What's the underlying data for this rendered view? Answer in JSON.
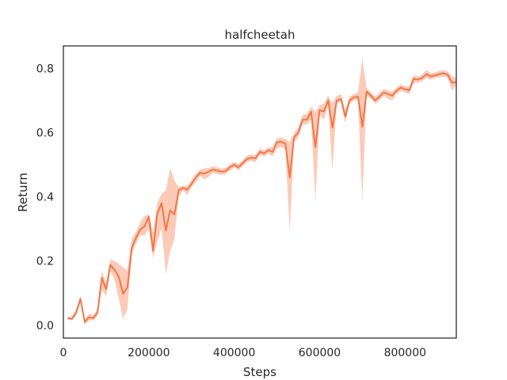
{
  "chart_data": {
    "type": "line",
    "title": "halfcheetah",
    "xlabel": "Steps",
    "ylabel": "Return",
    "xlim": [
      0,
      920000
    ],
    "ylim": [
      -0.04,
      0.87
    ],
    "xticks": [
      0,
      200000,
      400000,
      600000,
      800000
    ],
    "xtick_labels": [
      "0",
      "200000",
      "400000",
      "600000",
      "800000"
    ],
    "yticks": [
      0.0,
      0.2,
      0.4,
      0.6,
      0.8
    ],
    "ytick_labels": [
      "0.0",
      "0.2",
      "0.4",
      "0.6",
      "0.8"
    ],
    "grid": false,
    "colors": {
      "line": "#f07748",
      "band": "#f9b9a0"
    },
    "series": [
      {
        "x": [
          10000,
          20000,
          30000,
          40000,
          50000,
          60000,
          70000,
          80000,
          90000,
          100000,
          110000,
          120000,
          130000,
          140000,
          150000,
          160000,
          170000,
          180000,
          190000,
          200000,
          210000,
          220000,
          230000,
          240000,
          250000,
          260000,
          270000,
          280000,
          290000,
          300000,
          310000,
          320000,
          330000,
          340000,
          350000,
          360000,
          370000,
          380000,
          390000,
          400000,
          410000,
          420000,
          430000,
          440000,
          450000,
          460000,
          470000,
          480000,
          490000,
          500000,
          510000,
          520000,
          530000,
          540000,
          550000,
          560000,
          570000,
          580000,
          590000,
          600000,
          610000,
          620000,
          630000,
          640000,
          650000,
          660000,
          670000,
          680000,
          690000,
          700000,
          710000,
          720000,
          730000,
          740000,
          750000,
          760000,
          770000,
          780000,
          790000,
          800000,
          810000,
          820000,
          830000,
          840000,
          850000,
          860000,
          870000,
          880000,
          890000,
          900000,
          910000,
          920000
        ],
        "values": [
          0.022,
          0.02,
          0.04,
          0.082,
          0.01,
          0.025,
          0.022,
          0.04,
          0.148,
          0.112,
          0.188,
          0.172,
          0.15,
          0.098,
          0.118,
          0.24,
          0.272,
          0.298,
          0.308,
          0.338,
          0.232,
          0.348,
          0.38,
          0.295,
          0.358,
          0.345,
          0.42,
          0.428,
          0.422,
          0.44,
          0.46,
          0.475,
          0.472,
          0.478,
          0.485,
          0.482,
          0.478,
          0.48,
          0.492,
          0.5,
          0.492,
          0.505,
          0.518,
          0.522,
          0.52,
          0.54,
          0.535,
          0.545,
          0.54,
          0.57,
          0.572,
          0.565,
          0.46,
          0.585,
          0.6,
          0.64,
          0.64,
          0.665,
          0.555,
          0.67,
          0.665,
          0.7,
          0.615,
          0.7,
          0.705,
          0.65,
          0.7,
          0.71,
          0.712,
          0.618,
          0.728,
          0.715,
          0.7,
          0.712,
          0.725,
          0.72,
          0.715,
          0.73,
          0.74,
          0.735,
          0.732,
          0.768,
          0.765,
          0.77,
          0.782,
          0.775,
          0.778,
          0.782,
          0.785,
          0.78,
          0.755,
          0.758
        ],
        "lower": [
          0.018,
          0.015,
          0.03,
          0.07,
          0.002,
          0.015,
          0.015,
          0.03,
          0.11,
          0.09,
          0.17,
          0.14,
          0.08,
          0.02,
          0.05,
          0.22,
          0.255,
          0.28,
          0.28,
          0.3,
          0.21,
          0.26,
          0.3,
          0.16,
          0.23,
          0.27,
          0.4,
          0.42,
          0.405,
          0.43,
          0.445,
          0.465,
          0.455,
          0.462,
          0.475,
          0.47,
          0.468,
          0.47,
          0.482,
          0.492,
          0.482,
          0.495,
          0.508,
          0.512,
          0.508,
          0.53,
          0.525,
          0.535,
          0.525,
          0.55,
          0.555,
          0.545,
          0.29,
          0.57,
          0.585,
          0.625,
          0.625,
          0.64,
          0.39,
          0.655,
          0.64,
          0.685,
          0.48,
          0.69,
          0.695,
          0.63,
          0.69,
          0.7,
          0.7,
          0.39,
          0.715,
          0.705,
          0.69,
          0.7,
          0.715,
          0.705,
          0.7,
          0.72,
          0.73,
          0.725,
          0.72,
          0.755,
          0.755,
          0.76,
          0.77,
          0.765,
          0.77,
          0.772,
          0.775,
          0.77,
          0.73,
          0.748
        ],
        "upper": [
          0.026,
          0.025,
          0.05,
          0.092,
          0.018,
          0.035,
          0.03,
          0.05,
          0.17,
          0.13,
          0.205,
          0.2,
          0.19,
          0.18,
          0.17,
          0.27,
          0.29,
          0.32,
          0.34,
          0.345,
          0.29,
          0.38,
          0.41,
          0.42,
          0.49,
          0.45,
          0.43,
          0.435,
          0.435,
          0.452,
          0.472,
          0.485,
          0.488,
          0.49,
          0.495,
          0.492,
          0.488,
          0.49,
          0.502,
          0.508,
          0.502,
          0.515,
          0.528,
          0.532,
          0.53,
          0.55,
          0.545,
          0.555,
          0.555,
          0.582,
          0.585,
          0.58,
          0.57,
          0.6,
          0.615,
          0.655,
          0.658,
          0.68,
          0.665,
          0.685,
          0.69,
          0.715,
          0.69,
          0.715,
          0.72,
          0.67,
          0.712,
          0.72,
          0.725,
          0.83,
          0.74,
          0.725,
          0.712,
          0.725,
          0.735,
          0.732,
          0.728,
          0.74,
          0.75,
          0.745,
          0.742,
          0.778,
          0.775,
          0.78,
          0.795,
          0.785,
          0.788,
          0.792,
          0.795,
          0.79,
          0.775,
          0.77
        ]
      }
    ]
  }
}
